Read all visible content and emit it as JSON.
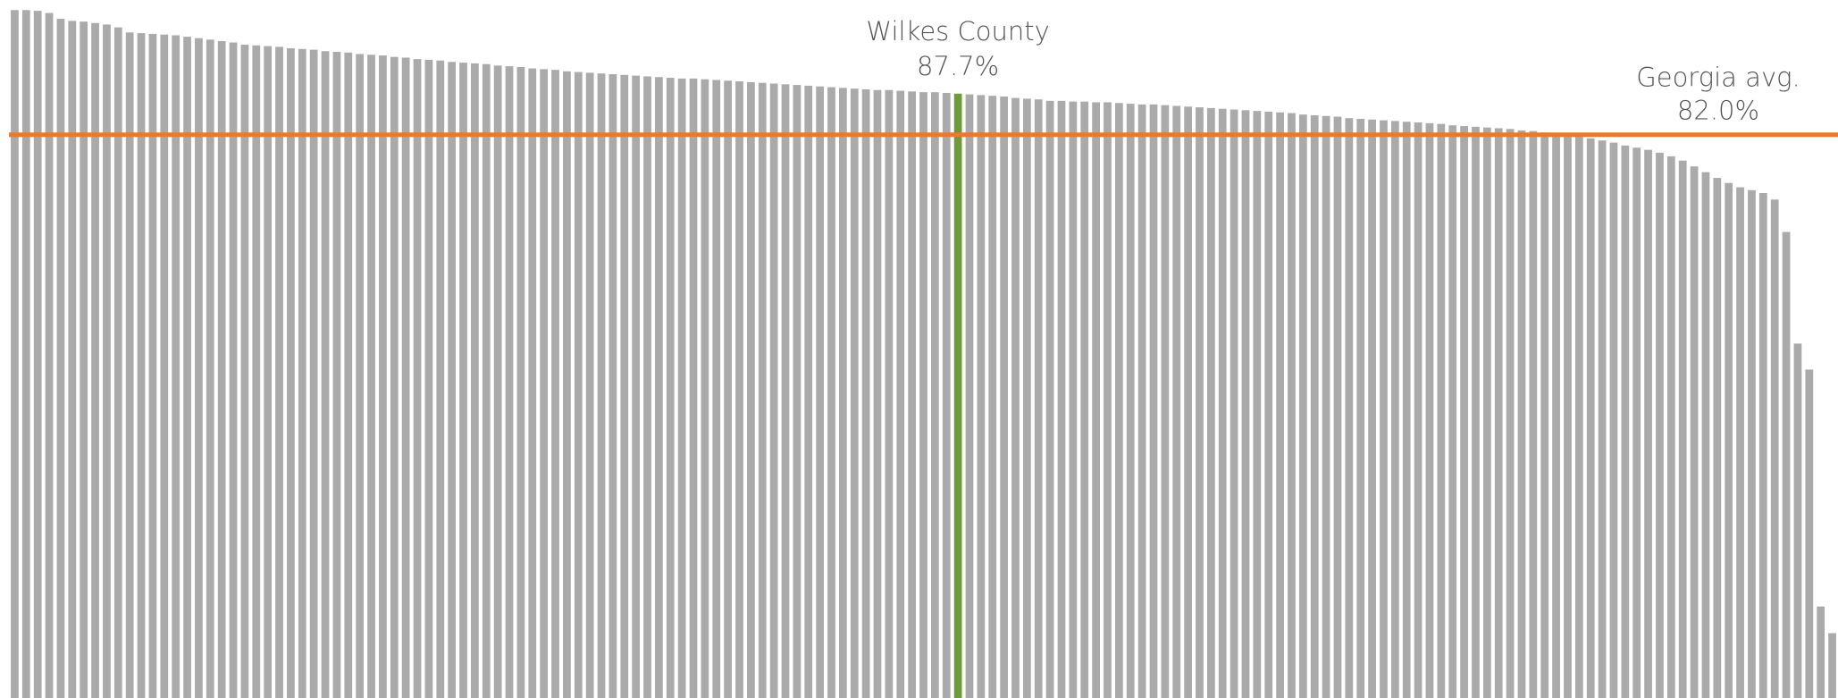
{
  "chart_data": {
    "type": "bar",
    "color": "#aaaaaa",
    "values": [
      99.3,
      99.3,
      99.2,
      98.9,
      98.1,
      97.8,
      97.7,
      97.5,
      97.3,
      96.9,
      96.2,
      96.1,
      96.0,
      95.9,
      95.8,
      95.6,
      95.4,
      95.2,
      95.0,
      94.8,
      94.5,
      94.4,
      94.3,
      94.2,
      94.0,
      93.9,
      93.8,
      93.6,
      93.5,
      93.4,
      93.2,
      93.1,
      93.0,
      92.8,
      92.7,
      92.5,
      92.4,
      92.3,
      92.1,
      92.0,
      91.9,
      91.8,
      91.6,
      91.5,
      91.4,
      91.2,
      91.1,
      91.0,
      90.8,
      90.7,
      90.6,
      90.5,
      90.4,
      90.3,
      90.2,
      90.1,
      90.0,
      89.9,
      89.8,
      89.8,
      89.7,
      89.6,
      89.5,
      89.4,
      89.3,
      89.2,
      89.1,
      89.0,
      88.9,
      88.8,
      88.7,
      88.6,
      88.5,
      88.4,
      88.3,
      88.2,
      88.2,
      88.1,
      88.0,
      87.9,
      87.9,
      87.8,
      87.7,
      87.6,
      87.5,
      87.4,
      87.3,
      87.1,
      87.0,
      86.9,
      86.7,
      86.7,
      86.6,
      86.6,
      86.5,
      86.5,
      86.4,
      86.3,
      86.2,
      86.2,
      86.1,
      86.0,
      85.9,
      85.8,
      85.7,
      85.6,
      85.5,
      85.4,
      85.3,
      85.2,
      85.1,
      85.0,
      84.8,
      84.7,
      84.6,
      84.5,
      84.3,
      84.2,
      84.1,
      84.0,
      83.9,
      83.8,
      83.7,
      83.6,
      83.5,
      83.3,
      83.2,
      83.1,
      83.0,
      82.9,
      82.8,
      82.6,
      82.5,
      82.3,
      82.2,
      82.0,
      81.8,
      81.5,
      81.2,
      80.9,
      80.5,
      80.2,
      79.9,
      79.5,
      79.0,
      78.4,
      77.6,
      76.8,
      76.0,
      75.3,
      74.7,
      74.3,
      73.9,
      73.0,
      68.5,
      53.0,
      49.4,
      16.5,
      12.8
    ],
    "ylim": [
      3.8,
      100.7
    ],
    "highlight": {
      "label": "Wilkes County",
      "value": 87.7,
      "value_label": "87.7%",
      "color": "#6f9a3c"
    },
    "reference": {
      "label": "Georgia avg.",
      "value": 82.0,
      "value_label": "82.0%",
      "color": "#e8792d"
    }
  }
}
